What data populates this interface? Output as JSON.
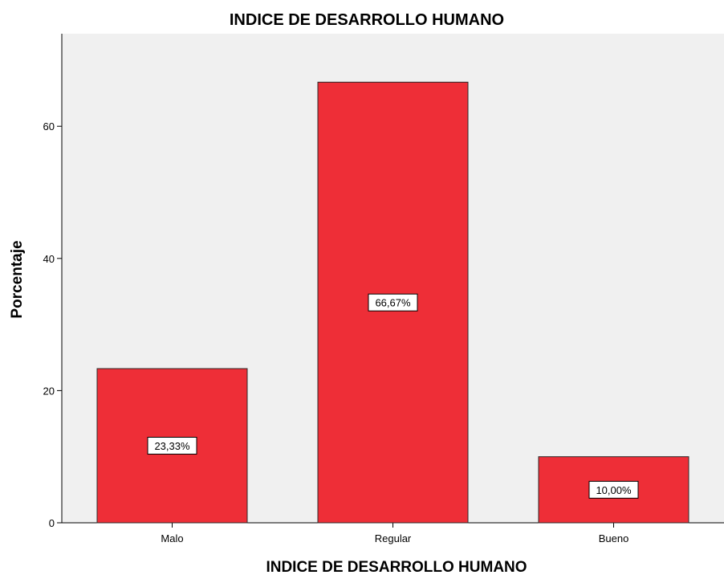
{
  "chart_data": {
    "type": "bar",
    "title": "INDICE DE DESARROLLO HUMANO",
    "xlabel": "INDICE DE DESARROLLO HUMANO",
    "ylabel": "Porcentaje",
    "categories": [
      "Malo",
      "Regular",
      "Bueno"
    ],
    "values": [
      23.33,
      66.67,
      10.0
    ],
    "data_labels": [
      "23,33%",
      "66,67%",
      "10,00%"
    ],
    "ylim": [
      0,
      74
    ],
    "yticks": [
      0,
      20,
      40,
      60
    ],
    "grid": false,
    "legend": "none",
    "colors": {
      "bar_fill": "#EE2E37",
      "bar_stroke": "#2a2a2a",
      "plot_background": "#F0F0F0",
      "page_background": "#FFFFFF"
    }
  }
}
